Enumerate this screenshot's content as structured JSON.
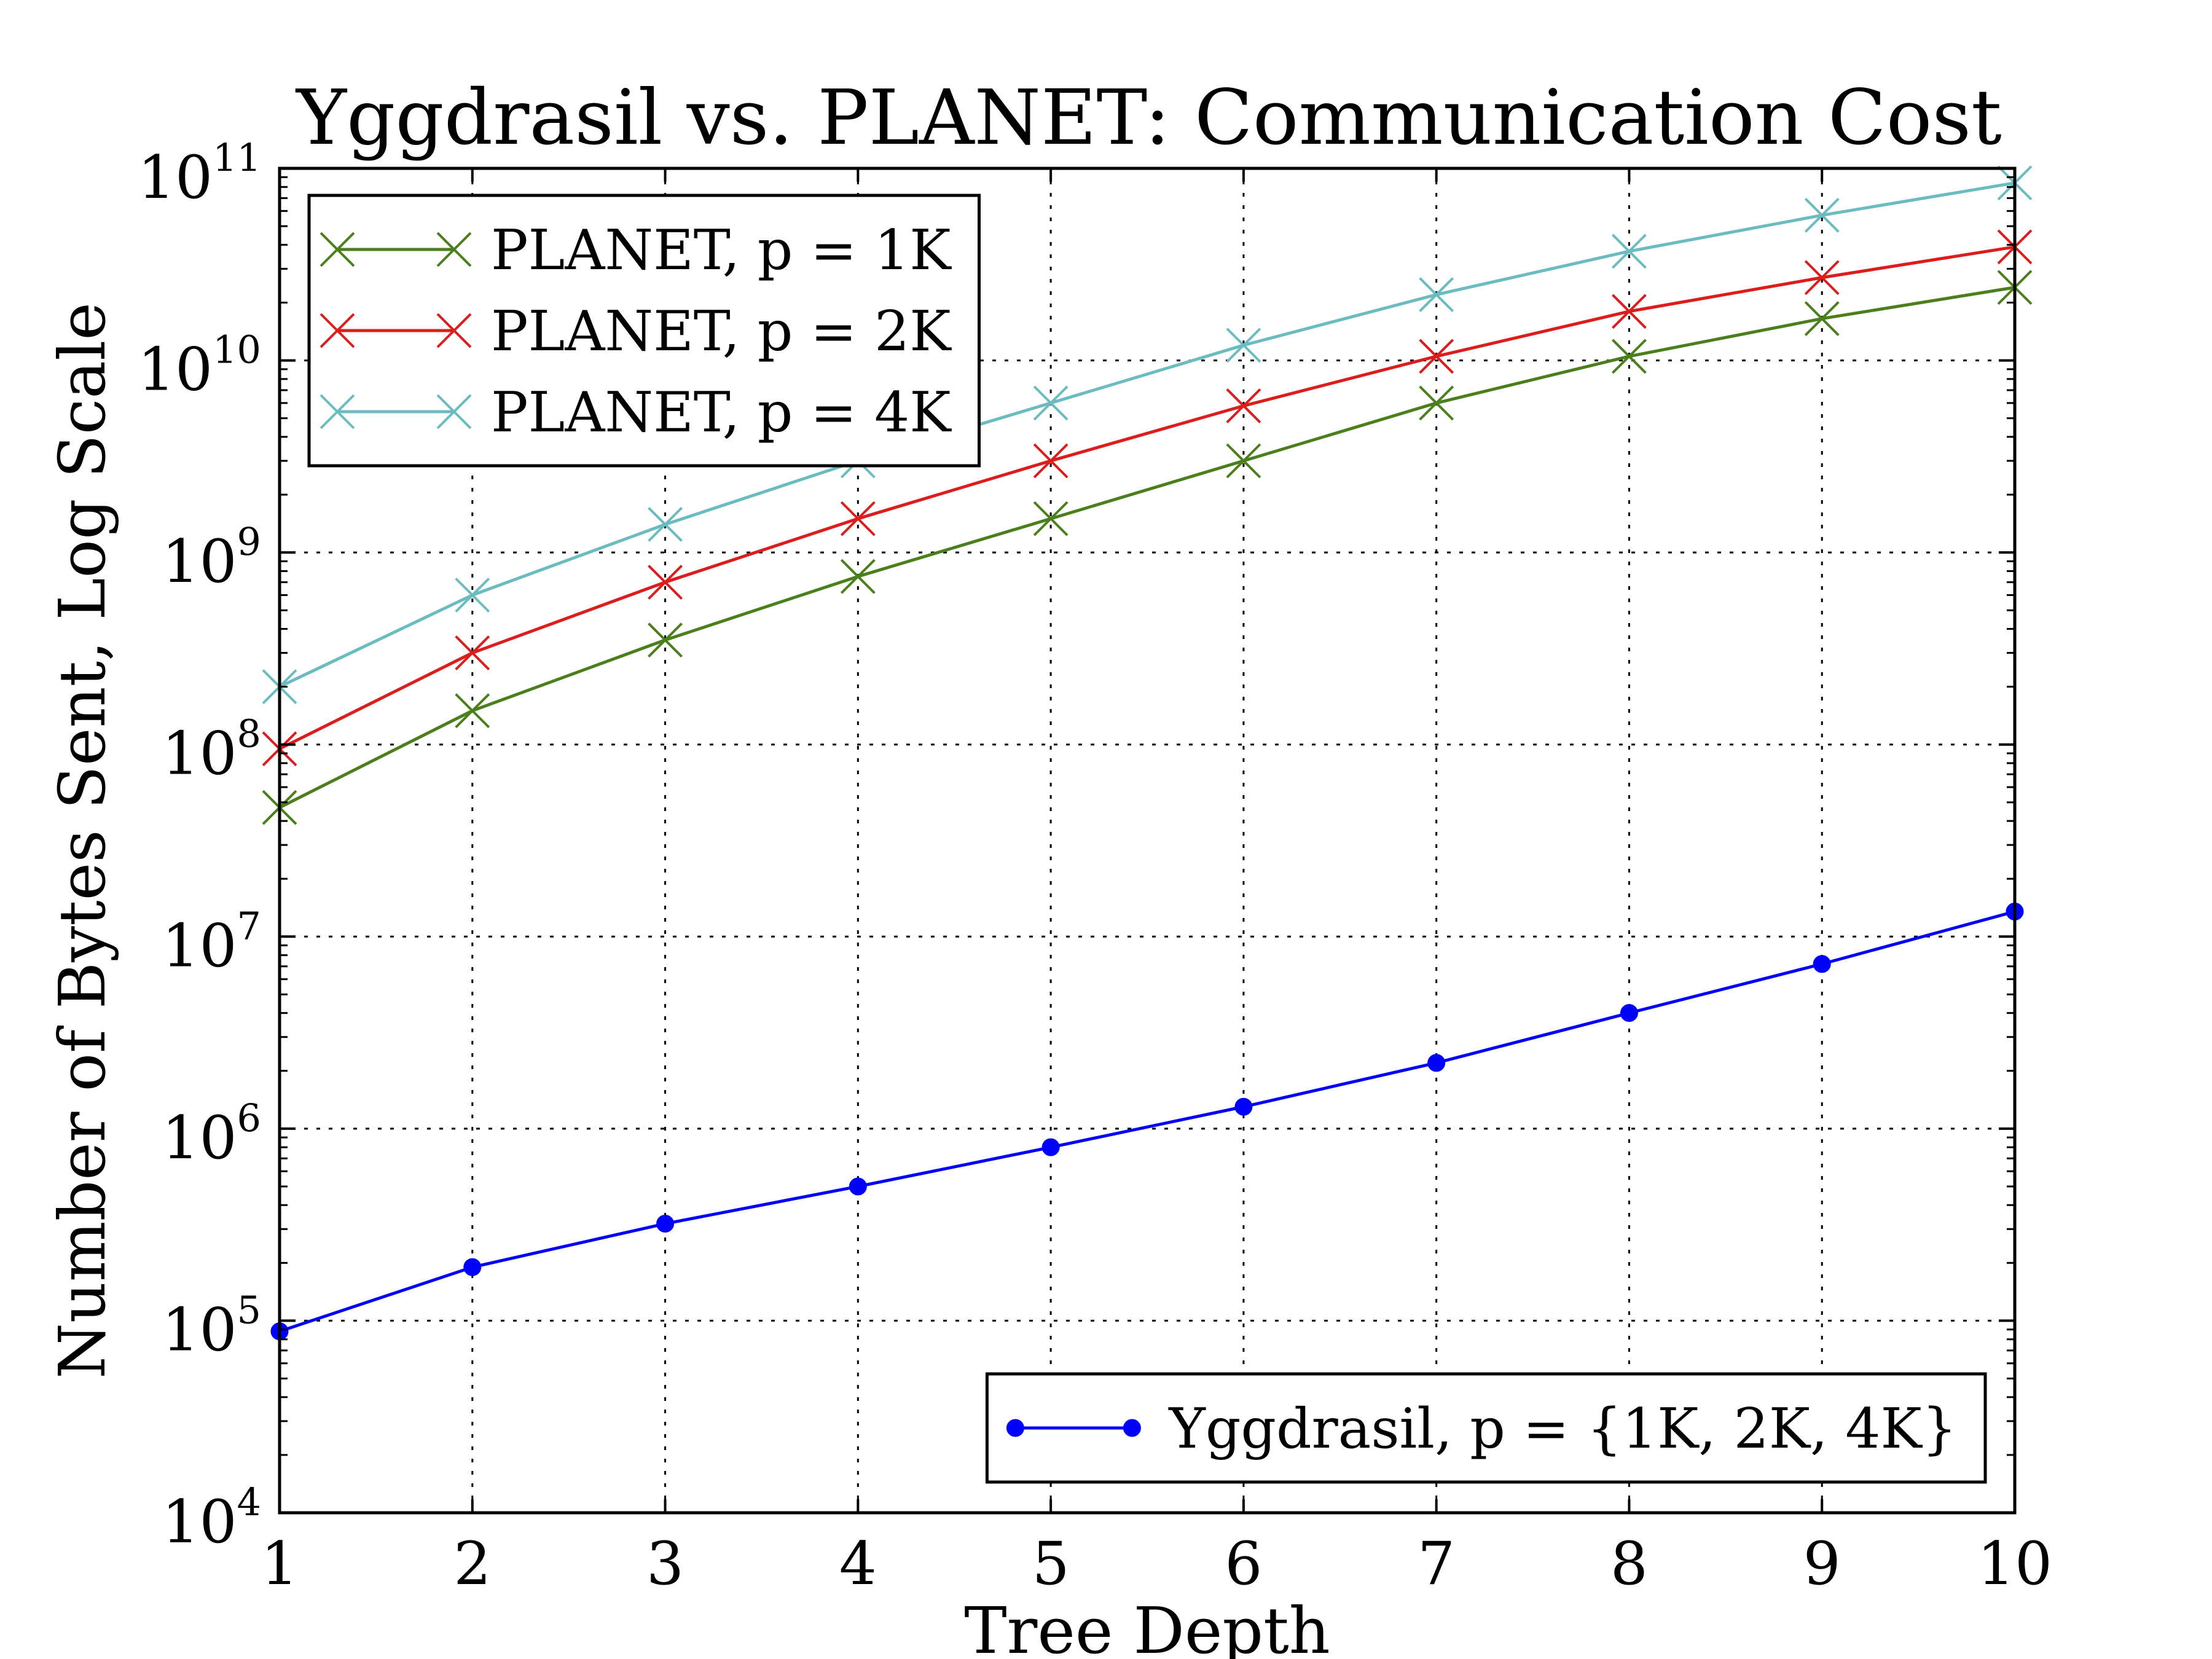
{
  "chart_data": {
    "type": "line",
    "title": "Yggdrasil vs. PLANET: Communication Cost",
    "xlabel": "Tree Depth",
    "ylabel": "Number of Bytes Sent, Log Scale",
    "x": [
      1,
      2,
      3,
      4,
      5,
      6,
      7,
      8,
      9,
      10
    ],
    "xlim": [
      1,
      10
    ],
    "ylim": [
      10000,
      100000000000
    ],
    "yscale": "log",
    "grid": true,
    "x_ticks": [
      "1",
      "2",
      "3",
      "4",
      "5",
      "6",
      "7",
      "8",
      "9",
      "10"
    ],
    "y_ticks": [
      {
        "value": 10000,
        "base": "10",
        "exp": "4"
      },
      {
        "value": 100000,
        "base": "10",
        "exp": "5"
      },
      {
        "value": 1000000,
        "base": "10",
        "exp": "6"
      },
      {
        "value": 10000000,
        "base": "10",
        "exp": "7"
      },
      {
        "value": 100000000,
        "base": "10",
        "exp": "8"
      },
      {
        "value": 1000000000,
        "base": "10",
        "exp": "9"
      },
      {
        "value": 10000000000,
        "base": "10",
        "exp": "10"
      },
      {
        "value": 100000000000,
        "base": "10",
        "exp": "11"
      }
    ],
    "series": [
      {
        "name": "PLANET, p = 1K",
        "color": "#4a7f1b",
        "marker": "x",
        "values": [
          47000000,
          150000000,
          350000000,
          750000000,
          1500000000,
          3000000000,
          6000000000,
          10500000000,
          16500000000,
          24000000000
        ]
      },
      {
        "name": "PLANET, p = 2K",
        "color": "#dd1c1c",
        "marker": "x",
        "values": [
          95000000,
          300000000,
          700000000,
          1500000000,
          3000000000,
          5800000000,
          10500000000,
          18000000000,
          27000000000,
          39000000000
        ]
      },
      {
        "name": "PLANET, p = 4K",
        "color": "#6bbcc0",
        "marker": "x",
        "values": [
          200000000,
          600000000,
          1400000000,
          3000000000,
          6000000000,
          12000000000,
          22000000000,
          37000000000,
          57000000000,
          84000000000
        ]
      },
      {
        "name": "Yggdrasil, p = {1K, 2K, 4K}",
        "color": "#0000ff",
        "marker": "circle",
        "values": [
          88000,
          190000,
          320000,
          500000,
          800000,
          1300000,
          2200000,
          4000000,
          7200000,
          13500000
        ]
      }
    ],
    "legends": [
      {
        "placement": "top-left",
        "series": [
          0,
          1,
          2
        ]
      },
      {
        "placement": "bottom-right",
        "series": [
          3
        ]
      }
    ]
  }
}
